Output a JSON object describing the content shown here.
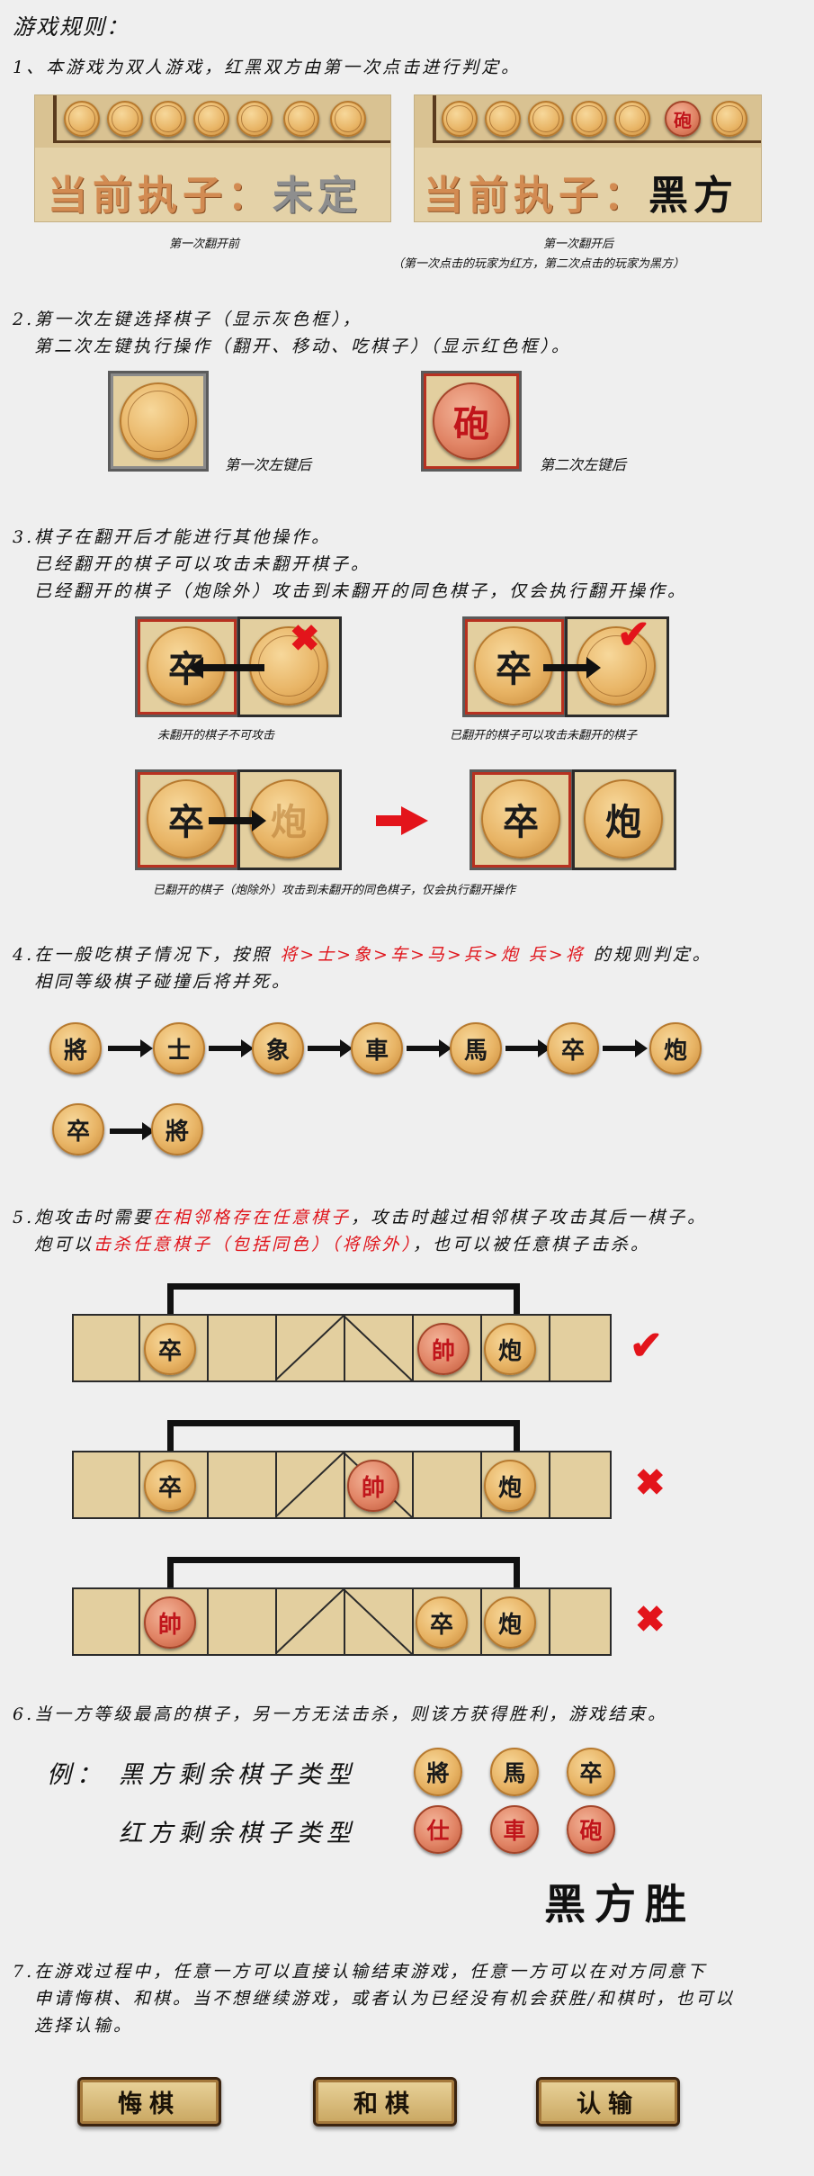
{
  "heading": "游戏规则：",
  "rule1": {
    "text": "1、本游戏为双人游戏，红黑双方由第一次点击进行判定。",
    "panel_left_label_prefix": "当前执子：",
    "panel_left_label_value": "未定",
    "panel_right_label_prefix": "当前执子：",
    "panel_right_label_value": "黑方",
    "right_panel_piece": "砲",
    "caption_left": "第一次翻开前",
    "caption_right": "第一次翻开后",
    "caption_right_note": "（第一次点击的玩家为红方，第二次点击的玩家为黑方）"
  },
  "rule2": {
    "line1": "2.第一次左键选择棋子（显示灰色框），",
    "line2": "第二次左键执行操作（翻开、移动、吃棋子）（显示红色框）。",
    "caption1": "第一次左键后",
    "caption2": "第二次左键后",
    "piece2": "砲"
  },
  "rule3": {
    "line1": "3.棋子在翻开后才能进行其他操作。",
    "line2": "已经翻开的棋子可以攻击未翻开棋子。",
    "line3": "已经翻开的棋子（炮除外）攻击到未翻开的同色棋子，仅会执行翻开操作。",
    "caption_a": "未翻开的棋子不可攻击",
    "caption_b": "已翻开的棋子可以攻击未翻开的棋子",
    "caption_c": "已翻开的棋子（炮除外）攻击到未翻开的同色棋子，仅会执行翻开操作",
    "piece_zu": "卒",
    "piece_pao": "炮"
  },
  "rule4": {
    "prefix": "4.在一般吃棋子情况下，按照",
    "order": "将>士>象>车>马>兵>炮 兵>将",
    "suffix": "的规则判定。",
    "line2": "相同等级棋子碰撞后将并死。",
    "ranks": [
      "將",
      "士",
      "象",
      "車",
      "馬",
      "卒",
      "炮"
    ],
    "ranks2": [
      "卒",
      "將"
    ]
  },
  "rule5": {
    "l1_a": "5.炮攻击时需要",
    "l1_red": "在相邻格存在任意棋子",
    "l1_b": "，攻击时越过相邻棋子攻击其后一棋子。",
    "l2_a": "炮可以",
    "l2_red": "击杀任意棋子（包括同色）（将除外）",
    "l2_b": "，也可以被任意棋子击杀。",
    "row1": [
      "卒",
      "帥",
      "炮"
    ],
    "row2": [
      "卒",
      "帥",
      "炮"
    ],
    "row3": [
      "帥",
      "卒",
      "炮"
    ]
  },
  "rule6": {
    "text": "6.当一方等级最高的棋子，另一方无法击杀，则该方获得胜利，游戏结束。",
    "example_label": "例：",
    "black_label": "黑方剩余棋子类型",
    "red_label": "红方剩余棋子类型",
    "black_pieces": [
      "將",
      "馬",
      "卒"
    ],
    "red_pieces": [
      "仕",
      "車",
      "砲"
    ],
    "winner": "黑方胜"
  },
  "rule7": {
    "line1": "7.在游戏过程中，任意一方可以直接认输结束游戏，任意一方可以在对方同意下",
    "line2": "申请悔棋、和棋。当不想继续游戏，或者认为已经没有机会获胜/和棋时，也可以",
    "line3": "选择认输。",
    "btn_undo": "悔棋",
    "btn_draw": "和棋",
    "btn_resign": "认输"
  }
}
